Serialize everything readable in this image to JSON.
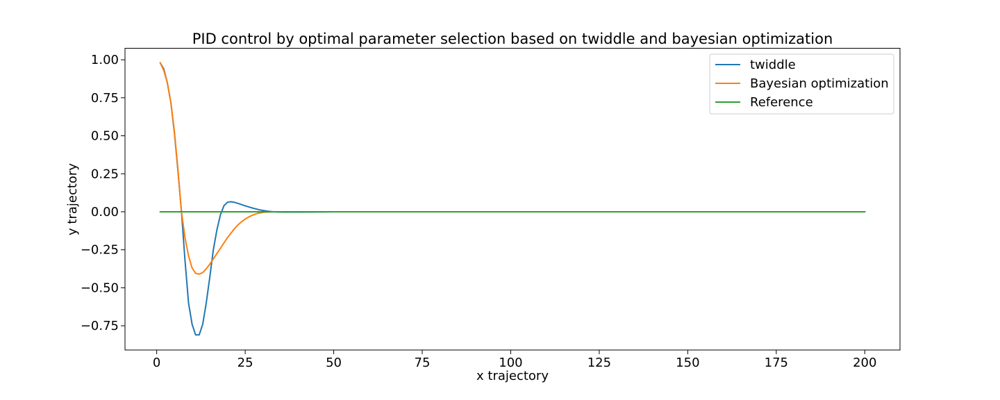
{
  "chart_data": {
    "type": "line",
    "title": "PID control by optimal parameter selection based on twiddle and bayesian optimization",
    "xlabel": "x trajectory",
    "ylabel": "y trajectory",
    "xlim": [
      -8.95,
      209.95
    ],
    "ylim": [
      -0.9093,
      1.0758
    ],
    "xticks": [
      0,
      25,
      50,
      75,
      100,
      125,
      150,
      175,
      200
    ],
    "xtick_labels": [
      "0",
      "25",
      "50",
      "75",
      "100",
      "125",
      "150",
      "175",
      "200"
    ],
    "yticks": [
      -0.75,
      -0.5,
      -0.25,
      0.0,
      0.25,
      0.5,
      0.75,
      1.0
    ],
    "ytick_labels": [
      "−0.75",
      "−0.50",
      "−0.25",
      "0.00",
      "0.25",
      "0.50",
      "0.75",
      "1.00"
    ],
    "grid": false,
    "legend_position": "top-right",
    "series": [
      {
        "name": "twiddle",
        "color": "#1f77b4",
        "x": [
          1,
          2,
          3,
          4,
          5,
          6,
          7,
          8,
          9,
          10,
          11,
          12,
          13,
          14,
          15,
          16,
          17,
          18,
          19,
          20,
          21,
          22,
          23,
          24,
          25,
          26,
          27,
          28,
          29,
          30,
          31,
          32,
          33,
          34,
          36,
          38,
          40,
          45,
          50,
          60,
          80,
          100,
          125,
          150,
          175,
          200
        ],
        "y": [
          0.98,
          0.94,
          0.85,
          0.72,
          0.52,
          0.27,
          0.0,
          -0.32,
          -0.6,
          -0.74,
          -0.81,
          -0.81,
          -0.74,
          -0.6,
          -0.43,
          -0.25,
          -0.12,
          -0.02,
          0.04,
          0.063,
          0.066,
          0.062,
          0.055,
          0.047,
          0.039,
          0.032,
          0.025,
          0.019,
          0.013,
          0.009,
          0.005,
          0.002,
          0.0,
          -0.001,
          -0.002,
          -0.002,
          -0.002,
          -0.001,
          0.0,
          0.0,
          0.0,
          0.0,
          0.0,
          0.0,
          0.0,
          0.0
        ]
      },
      {
        "name": "Bayesian optimization",
        "color": "#ff7f0e",
        "x": [
          1,
          2,
          3,
          4,
          5,
          6,
          7,
          8,
          9,
          10,
          11,
          12,
          13,
          14,
          15,
          16,
          17,
          18,
          19,
          20,
          21,
          22,
          23,
          24,
          25,
          26,
          27,
          28,
          29,
          30,
          31,
          32,
          33,
          34,
          36,
          38,
          40,
          45,
          50,
          60,
          80,
          100,
          125,
          150,
          175,
          200
        ],
        "y": [
          0.98,
          0.93,
          0.85,
          0.72,
          0.53,
          0.28,
          0.0,
          -0.17,
          -0.29,
          -0.37,
          -0.405,
          -0.41,
          -0.4,
          -0.375,
          -0.345,
          -0.31,
          -0.275,
          -0.24,
          -0.205,
          -0.17,
          -0.14,
          -0.11,
          -0.085,
          -0.065,
          -0.048,
          -0.034,
          -0.023,
          -0.014,
          -0.008,
          -0.004,
          -0.002,
          -0.001,
          0.0,
          0.0,
          0.0,
          0.0,
          0.0,
          0.0,
          0.0,
          0.0,
          0.0,
          0.0,
          0.0,
          0.0,
          0.0,
          0.0
        ]
      },
      {
        "name": "Reference",
        "color": "#2ca02c",
        "x": [
          1,
          200
        ],
        "y": [
          0.0,
          0.0
        ]
      }
    ]
  }
}
